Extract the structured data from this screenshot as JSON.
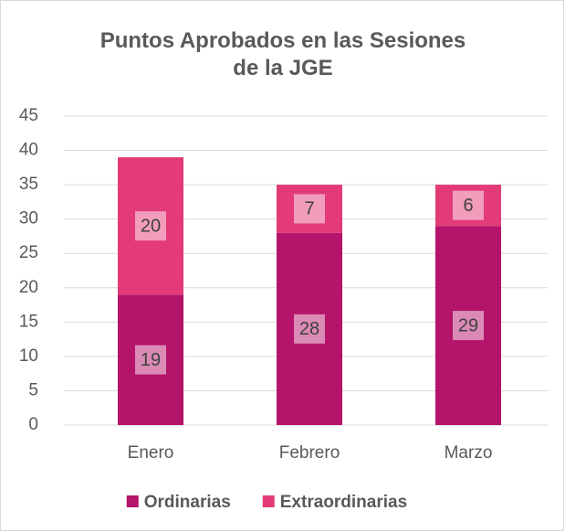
{
  "chart_data": {
    "type": "stacked_bar",
    "title": "Puntos Aprobados en las Sesiones de la JGE",
    "categories": [
      "Enero",
      "Febrero",
      "Marzo"
    ],
    "series": [
      {
        "name": "Ordinarias",
        "color": "#b5146b",
        "values": [
          19,
          28,
          29
        ]
      },
      {
        "name": "Extraordinarias",
        "color": "#e23b77",
        "values": [
          20,
          7,
          6
        ]
      }
    ],
    "ylim": [
      0,
      45
    ],
    "yticks": [
      0,
      5,
      10,
      15,
      20,
      25,
      30,
      35,
      40,
      45
    ],
    "grid": true,
    "legend": "bottom"
  }
}
